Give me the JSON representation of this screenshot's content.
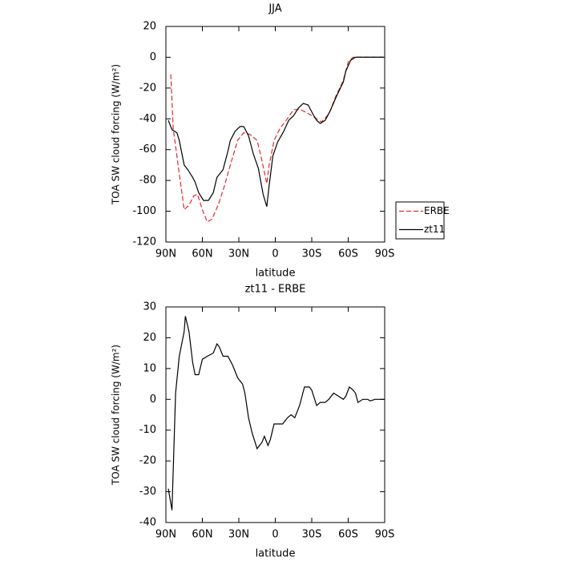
{
  "chart_data": [
    {
      "type": "line",
      "title": "JJA",
      "xlabel": "latitude",
      "ylabel": "TOA SW cloud forcing (W/m²)",
      "xlim": [
        90,
        -90
      ],
      "xticks": [
        {
          "value": 90,
          "label": "90N"
        },
        {
          "value": 60,
          "label": "60N"
        },
        {
          "value": 30,
          "label": "30N"
        },
        0,
        {
          "value": -30,
          "label": "30S"
        },
        {
          "value": -60,
          "label": "60S"
        },
        {
          "value": -90,
          "label": "90S"
        }
      ],
      "ylim": [
        -120,
        20
      ],
      "yticks": [
        -120,
        -100,
        -80,
        -60,
        -40,
        -20,
        0,
        20
      ],
      "legend": "right",
      "series": [
        {
          "name": "ERBE",
          "color": "#e8262b",
          "linestyle": "dashed",
          "x": [
            86,
            84,
            80,
            75,
            71,
            67,
            64,
            60,
            56,
            52,
            47,
            42,
            37,
            31,
            26,
            21,
            15,
            11,
            7,
            5,
            1,
            -4,
            -9,
            -15,
            -21,
            -28,
            -34,
            -38,
            -44,
            -50,
            -56,
            -60,
            -64,
            -70,
            -79,
            -89
          ],
          "values": [
            -11,
            -46,
            -70,
            -99,
            -96,
            -90,
            -89,
            -99,
            -107,
            -105,
            -96,
            -84,
            -70,
            -54,
            -49,
            -50,
            -54,
            -67,
            -82,
            -70,
            -54,
            -46,
            -41,
            -34,
            -34,
            -37,
            -40,
            -42,
            -37,
            -25,
            -15,
            -3,
            0,
            0,
            0,
            0
          ]
        },
        {
          "name": "zt11",
          "color": "#000000",
          "linestyle": "solid",
          "x": [
            88,
            85,
            81,
            79,
            75,
            72,
            68,
            66,
            63,
            59,
            55,
            51,
            48,
            43,
            39,
            37,
            33,
            29,
            26,
            22,
            18,
            14,
            10,
            7,
            5,
            2,
            -2,
            -7,
            -11,
            -15,
            -19,
            -23,
            -27,
            -31,
            -34,
            -37,
            -41,
            -45,
            -50,
            -56,
            -58,
            -62,
            -66,
            -74,
            -89
          ],
          "values": [
            -41,
            -47,
            -49,
            -54,
            -70,
            -73,
            -78,
            -81,
            -88,
            -93,
            -93,
            -88,
            -78,
            -73,
            -61,
            -54,
            -48,
            -45,
            -45,
            -51,
            -63,
            -72,
            -89,
            -97,
            -83,
            -64,
            -55,
            -48,
            -41,
            -38,
            -33,
            -30,
            -31,
            -37,
            -41,
            -43,
            -41,
            -35,
            -26,
            -16,
            -9,
            -2,
            0,
            0,
            0
          ]
        }
      ]
    },
    {
      "type": "line",
      "title": "zt11 - ERBE",
      "xlabel": "latitude",
      "ylabel": "TOA SW cloud forcing (W/m²)",
      "xlim": [
        90,
        -90
      ],
      "xticks": [
        {
          "value": 90,
          "label": "90N"
        },
        {
          "value": 60,
          "label": "60N"
        },
        {
          "value": 30,
          "label": "30N"
        },
        0,
        {
          "value": -30,
          "label": "30S"
        },
        {
          "value": -60,
          "label": "60S"
        },
        {
          "value": -90,
          "label": "90S"
        }
      ],
      "ylim": [
        -40,
        30
      ],
      "yticks": [
        -40,
        -30,
        -20,
        -10,
        0,
        10,
        20,
        30
      ],
      "series": [
        {
          "color": "#000000",
          "linestyle": "solid",
          "x": [
            88,
            85,
            82,
            79,
            75,
            74,
            71,
            68,
            66,
            63,
            60,
            56,
            51,
            48,
            46,
            43,
            39,
            35,
            31,
            27,
            25,
            22,
            19,
            15,
            11,
            9,
            6,
            4,
            1,
            -3,
            -6,
            -10,
            -13,
            -16,
            -20,
            -24,
            -28,
            -30,
            -34,
            -37,
            -41,
            -44,
            -48,
            -52,
            -56,
            -58,
            -61,
            -64,
            -66,
            -68,
            -72,
            -76,
            -78,
            -82,
            -86,
            -90
          ],
          "values": [
            -29,
            -36,
            2,
            14,
            22,
            27,
            22,
            12,
            8,
            8,
            13,
            14,
            15,
            18,
            17,
            14,
            14,
            11,
            7,
            5,
            2,
            -6,
            -11,
            -16,
            -14,
            -12,
            -15,
            -13,
            -8,
            -8,
            -8,
            -6,
            -5,
            -6,
            -2,
            4,
            4,
            3,
            -2,
            -1,
            -1,
            0,
            2,
            1,
            0,
            1,
            4,
            3,
            2,
            -1,
            0,
            0,
            -0.5,
            0,
            0,
            0
          ]
        }
      ]
    }
  ]
}
